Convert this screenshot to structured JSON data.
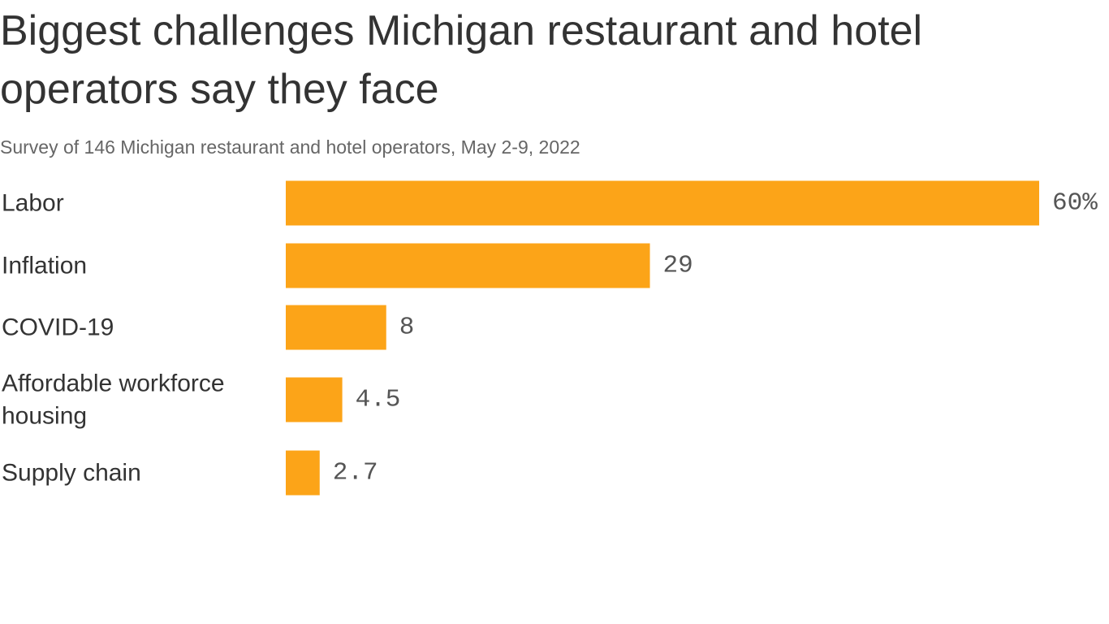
{
  "chart_data": {
    "type": "bar",
    "orientation": "horizontal",
    "title": "Biggest challenges Michigan restaurant and hotel operators say they face",
    "subtitle": "Survey of 146 Michigan restaurant and hotel operators, May 2-9, 2022",
    "categories": [
      "Labor",
      "Inflation",
      "COVID-19",
      "Affordable workforce housing",
      "Supply chain"
    ],
    "category_lines": [
      [
        "Labor"
      ],
      [
        "Inflation"
      ],
      [
        "COVID-19"
      ],
      [
        "Affordable workforce",
        "housing"
      ],
      [
        "Supply chain"
      ]
    ],
    "values": [
      60,
      29,
      8,
      4.5,
      2.7
    ],
    "value_labels": [
      "60%",
      "29",
      "8",
      "4.5",
      "2.7"
    ],
    "unit": "%",
    "xlim": [
      0,
      60
    ],
    "grid": false,
    "legend": "none",
    "bar_color": "#FCA418"
  }
}
